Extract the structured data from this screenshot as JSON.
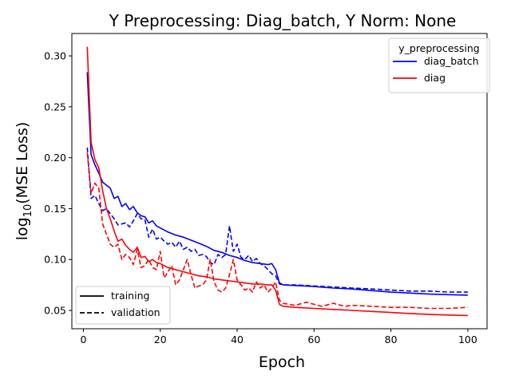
{
  "chart_data": {
    "type": "line",
    "title": "Y Preprocessing: Diag_batch, Y Norm: None",
    "xlabel": "Epoch",
    "ylabel": "log10(MSE Loss)",
    "xlim": [
      -3,
      105
    ],
    "ylim": [
      0.032,
      0.322
    ],
    "x_ticks": [
      0,
      20,
      40,
      60,
      80,
      100
    ],
    "y_ticks": [
      0.05,
      0.1,
      0.15,
      0.2,
      0.25,
      0.3
    ],
    "x_tick_labels": [
      "0",
      "20",
      "40",
      "60",
      "80",
      "100"
    ],
    "y_tick_labels": [
      "0.05",
      "0.10",
      "0.15",
      "0.20",
      "0.25",
      "0.30"
    ],
    "grid": false,
    "legends": [
      {
        "title": "y_preprocessing",
        "placement": "top-right",
        "entries": [
          {
            "label": "diag_batch",
            "color": "#0000ff"
          },
          {
            "label": "diag",
            "color": "#ff0000"
          }
        ]
      },
      {
        "title": "",
        "placement": "bottom-left",
        "entries": [
          {
            "label": "training",
            "style": "solid"
          },
          {
            "label": "validation",
            "style": "dashed"
          }
        ]
      }
    ],
    "series": [
      {
        "group": "diag_batch",
        "style": "training",
        "color": "#0000ff",
        "x": [
          1,
          2,
          3,
          4,
          5,
          6,
          7,
          8,
          9,
          10,
          11,
          12,
          13,
          14,
          15,
          16,
          17,
          18,
          19,
          20,
          22,
          24,
          26,
          28,
          30,
          32,
          34,
          36,
          38,
          40,
          42,
          44,
          46,
          48,
          49,
          50,
          51,
          52,
          55,
          60,
          65,
          70,
          75,
          80,
          85,
          90,
          95,
          100
        ],
        "y": [
          0.284,
          0.203,
          0.193,
          0.185,
          0.176,
          0.173,
          0.17,
          0.16,
          0.162,
          0.152,
          0.155,
          0.149,
          0.152,
          0.146,
          0.143,
          0.142,
          0.136,
          0.138,
          0.133,
          0.131,
          0.127,
          0.124,
          0.122,
          0.119,
          0.116,
          0.113,
          0.109,
          0.107,
          0.104,
          0.102,
          0.099,
          0.097,
          0.096,
          0.095,
          0.096,
          0.09,
          0.077,
          0.075,
          0.0745,
          0.0735,
          0.072,
          0.071,
          0.0695,
          0.068,
          0.067,
          0.066,
          0.0655,
          0.065
        ]
      },
      {
        "group": "diag_batch",
        "style": "validation",
        "color": "#0000ff",
        "x": [
          1,
          2,
          3,
          4,
          5,
          6,
          7,
          8,
          9,
          10,
          11,
          12,
          13,
          14,
          15,
          16,
          17,
          18,
          19,
          20,
          21,
          22,
          23,
          24,
          25,
          26,
          27,
          28,
          29,
          30,
          31,
          32,
          33,
          34,
          35,
          36,
          37,
          38,
          39,
          40,
          41,
          42,
          43,
          44,
          45,
          46,
          47,
          48,
          49,
          50,
          51,
          52,
          55,
          60,
          65,
          70,
          75,
          80,
          85,
          90,
          95,
          100
        ],
        "y": [
          0.21,
          0.16,
          0.163,
          0.155,
          0.148,
          0.15,
          0.145,
          0.14,
          0.134,
          0.135,
          0.136,
          0.132,
          0.138,
          0.145,
          0.14,
          0.139,
          0.122,
          0.13,
          0.12,
          0.122,
          0.118,
          0.115,
          0.117,
          0.112,
          0.118,
          0.11,
          0.112,
          0.108,
          0.11,
          0.104,
          0.105,
          0.103,
          0.097,
          0.095,
          0.105,
          0.102,
          0.105,
          0.133,
          0.108,
          0.115,
          0.102,
          0.1,
          0.104,
          0.098,
          0.101,
          0.096,
          0.094,
          0.09,
          0.086,
          0.084,
          0.076,
          0.075,
          0.075,
          0.074,
          0.073,
          0.072,
          0.071,
          0.07,
          0.069,
          0.069,
          0.068,
          0.068
        ]
      },
      {
        "group": "diag",
        "style": "training",
        "color": "#ff0000",
        "x": [
          1,
          2,
          3,
          4,
          5,
          6,
          7,
          8,
          9,
          10,
          11,
          12,
          13,
          14,
          15,
          16,
          17,
          18,
          19,
          20,
          22,
          24,
          26,
          28,
          30,
          32,
          34,
          36,
          38,
          40,
          42,
          44,
          46,
          48,
          49,
          50,
          51,
          52,
          55,
          60,
          65,
          70,
          75,
          80,
          85,
          90,
          95,
          100
        ],
        "y": [
          0.309,
          0.215,
          0.198,
          0.19,
          0.168,
          0.15,
          0.14,
          0.128,
          0.118,
          0.12,
          0.114,
          0.11,
          0.107,
          0.112,
          0.102,
          0.103,
          0.098,
          0.1,
          0.097,
          0.096,
          0.092,
          0.09,
          0.088,
          0.086,
          0.084,
          0.083,
          0.081,
          0.08,
          0.079,
          0.078,
          0.077,
          0.076,
          0.076,
          0.075,
          0.075,
          0.07,
          0.056,
          0.054,
          0.053,
          0.052,
          0.051,
          0.05,
          0.049,
          0.048,
          0.047,
          0.046,
          0.0455,
          0.045
        ]
      },
      {
        "group": "diag",
        "style": "validation",
        "color": "#ff0000",
        "x": [
          1,
          2,
          3,
          4,
          5,
          6,
          7,
          8,
          9,
          10,
          11,
          12,
          13,
          14,
          15,
          16,
          17,
          18,
          19,
          20,
          21,
          22,
          23,
          24,
          25,
          26,
          27,
          28,
          29,
          30,
          31,
          32,
          33,
          34,
          35,
          36,
          37,
          38,
          39,
          40,
          41,
          42,
          43,
          44,
          45,
          46,
          47,
          48,
          49,
          50,
          51,
          52,
          55,
          58,
          60,
          62,
          65,
          68,
          70,
          75,
          80,
          85,
          90,
          95,
          100
        ],
        "y": [
          0.205,
          0.165,
          0.175,
          0.17,
          0.135,
          0.125,
          0.115,
          0.112,
          0.115,
          0.1,
          0.105,
          0.102,
          0.095,
          0.11,
          0.092,
          0.094,
          0.1,
          0.092,
          0.09,
          0.108,
          0.082,
          0.088,
          0.094,
          0.075,
          0.08,
          0.09,
          0.1,
          0.085,
          0.072,
          0.074,
          0.075,
          0.08,
          0.1,
          0.078,
          0.07,
          0.068,
          0.072,
          0.085,
          0.1,
          0.08,
          0.075,
          0.07,
          0.072,
          0.068,
          0.078,
          0.072,
          0.075,
          0.068,
          0.072,
          0.078,
          0.06,
          0.057,
          0.055,
          0.058,
          0.056,
          0.054,
          0.057,
          0.054,
          0.055,
          0.054,
          0.053,
          0.053,
          0.052,
          0.052,
          0.053
        ]
      }
    ]
  }
}
